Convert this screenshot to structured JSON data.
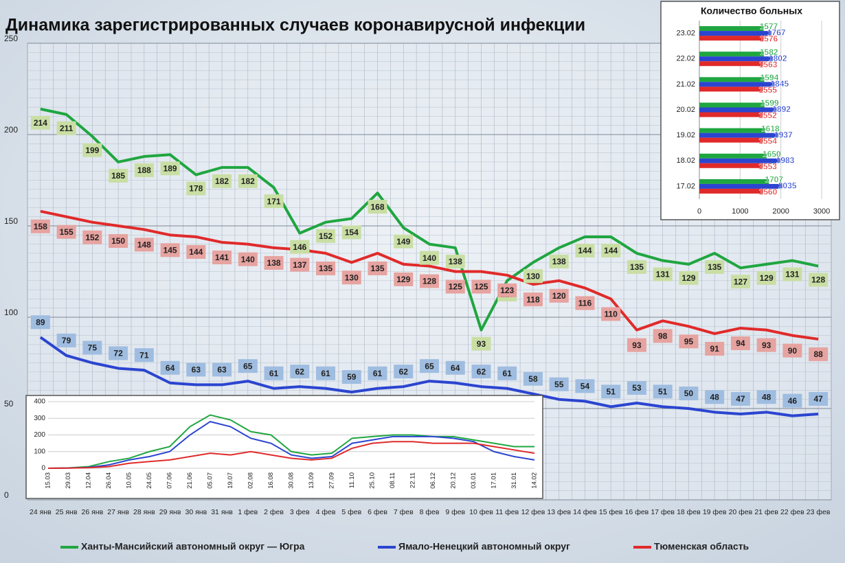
{
  "chart_data": [
    {
      "type": "line",
      "title": "Динамика зарегистрированных случаев коронавирусной инфекции",
      "categories": [
        "24 янв",
        "25 янв",
        "26 янв",
        "27 янв",
        "28 янв",
        "29 янв",
        "30 янв",
        "31 янв",
        "1 фев",
        "2 фев",
        "3 фев",
        "4 фев",
        "5 фев",
        "6 фев",
        "7 фев",
        "8 фев",
        "9 фев",
        "10 фев",
        "11 фев",
        "12 фев",
        "13 фев",
        "14 фев",
        "15 фев",
        "16 фев",
        "17 фев",
        "18 фев",
        "19 фев",
        "20 фев",
        "21 фев",
        "22 фев",
        "23 фев"
      ],
      "series": [
        {
          "name": "Ханты-Мансийский автономный округ — Югра",
          "color": "#1fa640",
          "label_color": "#c9dea4",
          "values": [
            214,
            211,
            199,
            185,
            188,
            189,
            178,
            182,
            182,
            171,
            146,
            152,
            154,
            168,
            149,
            140,
            138,
            93,
            120,
            130,
            138,
            144,
            144,
            135,
            131,
            129,
            135,
            127,
            129,
            131,
            128
          ]
        },
        {
          "name": "Ямало-Ненецкий автономный округ",
          "color": "#2b45d0",
          "label_color": "#9fbde0",
          "values": [
            89,
            79,
            75,
            72,
            71,
            64,
            63,
            63,
            65,
            61,
            62,
            61,
            59,
            61,
            62,
            65,
            64,
            62,
            61,
            58,
            55,
            54,
            51,
            53,
            51,
            50,
            48,
            47,
            48,
            46,
            47
          ]
        },
        {
          "name": "Тюменская область",
          "color": "#e02a2a",
          "label_color": "#e6a3a0",
          "values": [
            158,
            155,
            152,
            150,
            148,
            145,
            144,
            141,
            140,
            138,
            137,
            135,
            130,
            135,
            129,
            128,
            125,
            125,
            123,
            118,
            120,
            116,
            110,
            93,
            98,
            95,
            91,
            94,
            93,
            90,
            88
          ]
        }
      ],
      "ylim": [
        0,
        250
      ],
      "yticks": [
        0,
        50,
        100,
        150,
        200,
        250
      ],
      "grid": true,
      "data_labels": true,
      "legend": "bottom"
    },
    {
      "type": "bar",
      "orientation": "horizontal",
      "title": "Количество больных",
      "categories": [
        "23.02",
        "22.02",
        "21.02",
        "20.02",
        "19.02",
        "18.02",
        "17.02"
      ],
      "series": [
        {
          "color": "#1fa640",
          "values": [
            1577,
            1582,
            1594,
            1599,
            1618,
            1650,
            1707
          ]
        },
        {
          "color": "#2b45d0",
          "values": [
            1767,
            1802,
            1845,
            1892,
            1937,
            1983,
            2035
          ]
        },
        {
          "color": "#e02a2a",
          "values": [
            1576,
            1563,
            1555,
            1552,
            1554,
            1553,
            1560
          ]
        }
      ],
      "xlim": [
        0,
        3000
      ],
      "xticks": [
        0,
        1000,
        2000,
        3000
      ],
      "grid": true,
      "data_labels": true
    },
    {
      "type": "line",
      "categories": [
        "15.03",
        "29.03",
        "12.04",
        "26.04",
        "10.05",
        "24.05",
        "07.06",
        "21.06",
        "05.07",
        "19.07",
        "02.08",
        "16.08",
        "30.08",
        "13.09",
        "27.09",
        "11.10",
        "25.10",
        "08.11",
        "22.11",
        "06.12",
        "20.12",
        "03.01",
        "17.01",
        "31.01",
        "14.02"
      ],
      "series": [
        {
          "color": "#1fa640",
          "values": [
            0,
            2,
            10,
            40,
            60,
            100,
            130,
            250,
            320,
            290,
            220,
            200,
            100,
            80,
            90,
            180,
            190,
            200,
            200,
            190,
            190,
            170,
            150,
            130,
            130
          ]
        },
        {
          "color": "#2b45d0",
          "values": [
            0,
            1,
            5,
            20,
            50,
            70,
            100,
            200,
            280,
            250,
            180,
            150,
            80,
            60,
            70,
            150,
            170,
            190,
            190,
            190,
            180,
            160,
            100,
            70,
            50
          ]
        },
        {
          "color": "#e02a2a",
          "values": [
            0,
            1,
            3,
            10,
            30,
            40,
            50,
            70,
            90,
            80,
            100,
            80,
            60,
            50,
            60,
            120,
            150,
            160,
            160,
            150,
            150,
            150,
            130,
            110,
            90
          ]
        }
      ],
      "ylim": [
        0,
        400
      ],
      "yticks": [
        0,
        100,
        200,
        300,
        400
      ],
      "grid": true,
      "data_labels": false
    }
  ]
}
